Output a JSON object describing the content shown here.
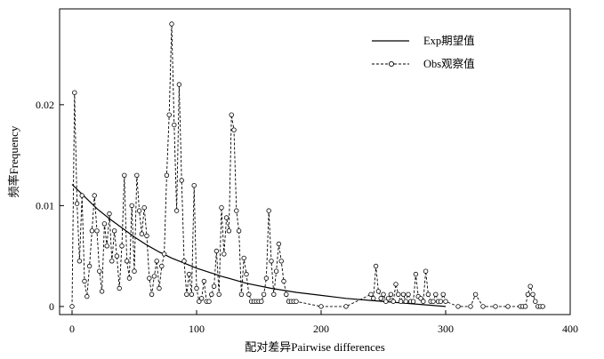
{
  "chart_data": {
    "type": "line",
    "xlabel": "配对差异Pairwise differences",
    "ylabel": "频率Frequency",
    "xlim": [
      -10,
      400
    ],
    "ylim": [
      -0.0008,
      0.0295
    ],
    "xticks": [
      0,
      100,
      200,
      300,
      400
    ],
    "xtick_labels": [
      "0",
      "100",
      "200",
      "300",
      "400"
    ],
    "yticks": [
      0,
      0.01,
      0.02
    ],
    "ytick_labels": [
      "0",
      "0.01",
      "0.02"
    ],
    "legend_position": "top-right",
    "series": [
      {
        "name": "Exp期望值",
        "style": "solid",
        "x": [
          0,
          10,
          20,
          30,
          40,
          50,
          60,
          70,
          80,
          90,
          100,
          120,
          140,
          160,
          180,
          200,
          220,
          240,
          260,
          280,
          300
        ],
        "y": [
          0.0121,
          0.0109,
          0.0097,
          0.0087,
          0.0078,
          0.0069,
          0.0061,
          0.0054,
          0.0048,
          0.0043,
          0.0038,
          0.003,
          0.0023,
          0.0018,
          0.0014,
          0.0011,
          0.0008,
          0.0006,
          0.0004,
          0.0002,
          0
        ]
      },
      {
        "name": "Obs观察值",
        "style": "dashed-circle",
        "x": [
          0,
          2,
          4,
          6,
          8,
          10,
          12,
          14,
          16,
          18,
          20,
          22,
          24,
          26,
          28,
          30,
          32,
          34,
          36,
          38,
          40,
          42,
          44,
          46,
          48,
          50,
          52,
          54,
          56,
          58,
          60,
          62,
          64,
          66,
          68,
          70,
          72,
          74,
          76,
          78,
          80,
          82,
          84,
          86,
          88,
          90,
          92,
          94,
          96,
          98,
          100,
          102,
          104,
          106,
          108,
          110,
          112,
          114,
          116,
          118,
          120,
          122,
          124,
          126,
          128,
          130,
          132,
          134,
          136,
          138,
          140,
          142,
          144,
          146,
          148,
          150,
          152,
          154,
          156,
          158,
          160,
          162,
          164,
          166,
          168,
          170,
          172,
          174,
          176,
          178,
          180,
          200,
          220,
          240,
          242,
          244,
          246,
          248,
          250,
          252,
          254,
          256,
          258,
          260,
          262,
          264,
          266,
          268,
          270,
          272,
          274,
          276,
          278,
          280,
          282,
          284,
          286,
          288,
          290,
          292,
          294,
          296,
          298,
          300,
          310,
          320,
          324,
          330,
          340,
          350,
          360,
          362,
          364,
          366,
          368,
          370,
          372,
          374,
          376,
          378
        ],
        "y": [
          0,
          0.0212,
          0.0102,
          0.0045,
          0.011,
          0.0025,
          0.001,
          0.004,
          0.0075,
          0.011,
          0.0075,
          0.0035,
          0.0015,
          0.0082,
          0.006,
          0.0092,
          0.0045,
          0.0075,
          0.005,
          0.0018,
          0.006,
          0.013,
          0.0045,
          0.0028,
          0.01,
          0.0035,
          0.013,
          0.0095,
          0.0072,
          0.0098,
          0.007,
          0.0028,
          0.0012,
          0.003,
          0.0045,
          0.0018,
          0.004,
          0.0052,
          0.013,
          0.019,
          0.028,
          0.018,
          0.0095,
          0.022,
          0.0125,
          0.0045,
          0.0012,
          0.0032,
          0.0012,
          0.012,
          0.0018,
          0.0005,
          0.0008,
          0.0025,
          0.0005,
          0.0005,
          0.0012,
          0.002,
          0.0055,
          0.0012,
          0.0098,
          0.0052,
          0.0088,
          0.0075,
          0.019,
          0.0175,
          0.0095,
          0.0075,
          0.0012,
          0.0048,
          0.0032,
          0.0012,
          0.0005,
          0.0005,
          0.0005,
          0.0005,
          0.0005,
          0.0012,
          0.0028,
          0.0095,
          0.0045,
          0.0012,
          0.0035,
          0.0062,
          0.0045,
          0.0025,
          0.0012,
          0.0005,
          0.0005,
          0.0005,
          0.0005,
          0,
          0,
          0.0012,
          0.0008,
          0.004,
          0.0015,
          0.0008,
          0.0012,
          0.0005,
          0.0008,
          0.0012,
          0.0005,
          0.0022,
          0.0012,
          0.0005,
          0.0012,
          0.0005,
          0.0012,
          0.0005,
          0.0005,
          0.0032,
          0.001,
          0.0008,
          0.0005,
          0.0035,
          0.0012,
          0.0005,
          0.0005,
          0.0012,
          0.0005,
          0.0005,
          0.0012,
          0.0005,
          0,
          0,
          0.0012,
          0,
          0,
          0,
          0,
          0,
          0,
          0.0012,
          0.002,
          0.0012,
          0.0005,
          0,
          0,
          0
        ]
      }
    ]
  }
}
